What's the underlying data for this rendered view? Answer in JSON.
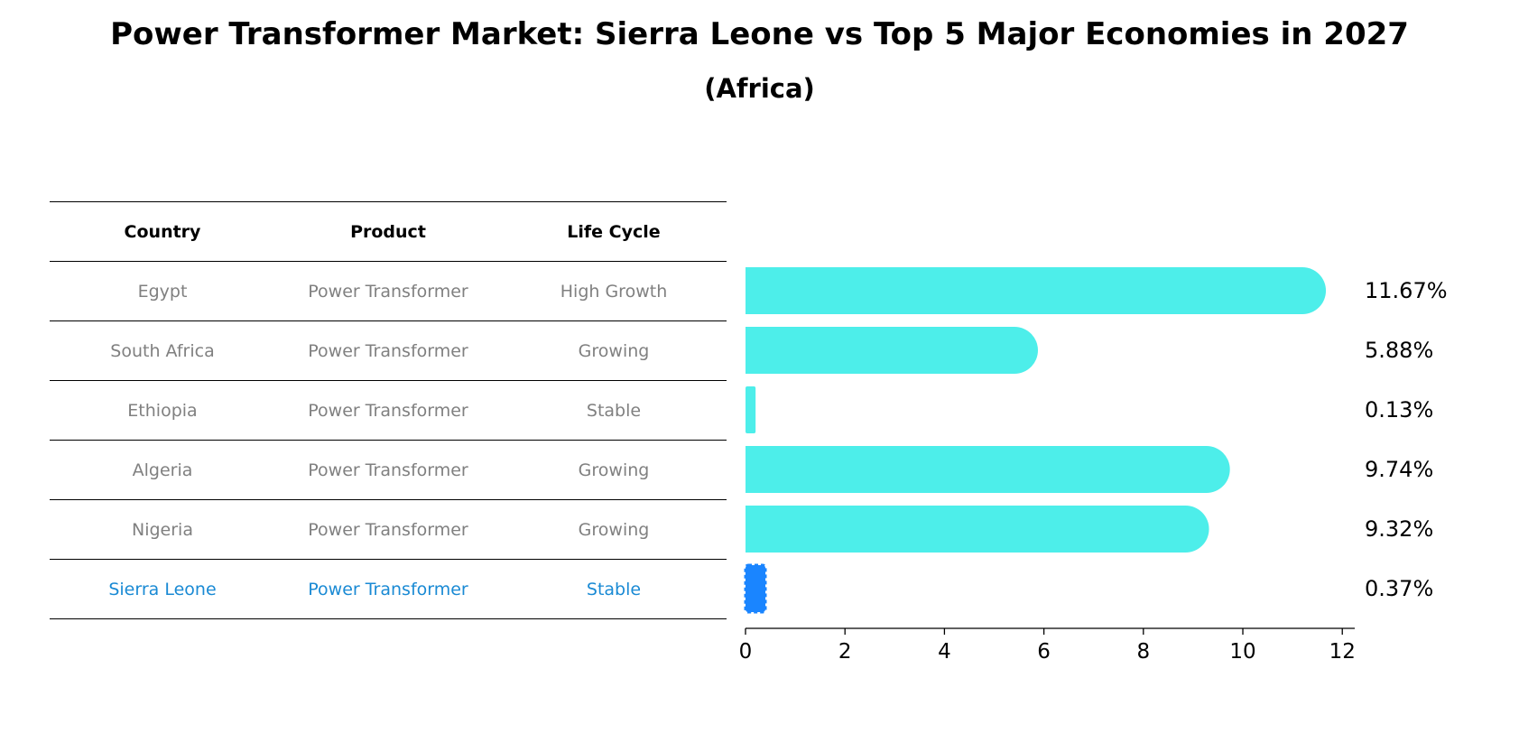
{
  "title": "Power Transformer Market: Sierra Leone vs Top 5 Major Economies in 2027",
  "subtitle": "(Africa)",
  "table": {
    "headers": [
      "Country",
      "Product",
      "Life Cycle"
    ],
    "rows": [
      {
        "country": "Egypt",
        "product": "Power Transformer",
        "life_cycle": "High Growth"
      },
      {
        "country": "South Africa",
        "product": "Power Transformer",
        "life_cycle": "Growing"
      },
      {
        "country": "Ethiopia",
        "product": "Power Transformer",
        "life_cycle": "Stable"
      },
      {
        "country": "Algeria",
        "product": "Power Transformer",
        "life_cycle": "Growing"
      },
      {
        "country": "Nigeria",
        "product": "Power Transformer",
        "life_cycle": "Growing"
      },
      {
        "country": "Sierra Leone",
        "product": "Power Transformer",
        "life_cycle": "Stable"
      }
    ],
    "highlight_color": "#1a8ad4",
    "text_color": "#808080"
  },
  "chart_data": {
    "type": "bar",
    "orientation": "horizontal",
    "categories": [
      "Egypt",
      "South Africa",
      "Ethiopia",
      "Algeria",
      "Nigeria",
      "Sierra Leone"
    ],
    "values": [
      11.67,
      5.88,
      0.13,
      9.74,
      9.32,
      0.37
    ],
    "value_labels": [
      "11.67%",
      "5.88%",
      "0.13%",
      "9.74%",
      "9.32%",
      "0.37%"
    ],
    "xlim": [
      0,
      12.25
    ],
    "xticks": [
      0,
      2,
      4,
      6,
      8,
      10,
      12
    ],
    "xtick_labels": [
      "0",
      "2",
      "4",
      "6",
      "8",
      "10",
      "12"
    ],
    "bar_color": "#4deeea",
    "highlight_bar_color": "#1a85ff",
    "highlight_index": 5,
    "grid": false
  }
}
